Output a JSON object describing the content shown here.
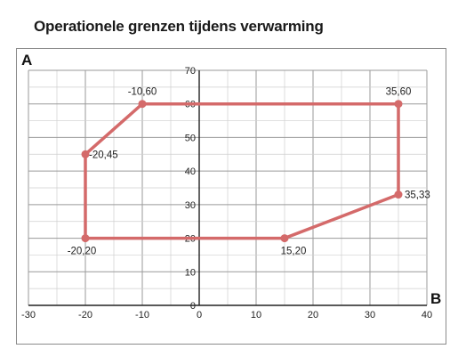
{
  "title": "Operationele grenzen tijdens verwarming",
  "chart_data": {
    "type": "line",
    "title": "Operationele grenzen tijdens verwarming",
    "corner_labels": {
      "top_left": "A",
      "bottom_right": "B"
    },
    "xlim": [
      -30,
      40
    ],
    "ylim": [
      0,
      70
    ],
    "x_ticks": [
      -30,
      -20,
      -10,
      0,
      10,
      20,
      30,
      40
    ],
    "y_ticks": [
      0,
      10,
      20,
      30,
      40,
      50,
      60,
      70
    ],
    "grid": true,
    "series": [
      {
        "color": "#d46a6a",
        "closed": true,
        "points": [
          {
            "x": -10,
            "y": 60,
            "label": "-10,60"
          },
          {
            "x": 35,
            "y": 60,
            "label": "35,60"
          },
          {
            "x": 35,
            "y": 33,
            "label": "35,33"
          },
          {
            "x": 15,
            "y": 20,
            "label": "15,20"
          },
          {
            "x": -20,
            "y": 20,
            "label": "-20,20"
          },
          {
            "x": -20,
            "y": 45,
            "label": "-20,45"
          }
        ]
      }
    ]
  }
}
